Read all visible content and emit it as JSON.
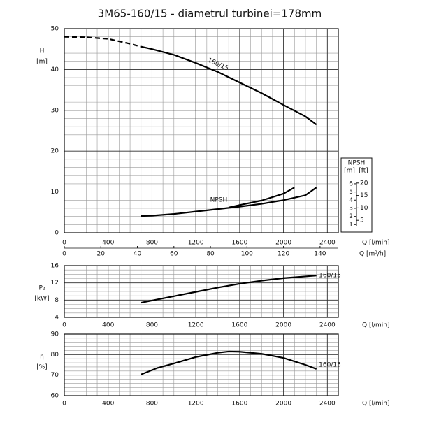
{
  "title": "3M65-160/15 - diametrul turbinei=178mm",
  "chart_data": [
    {
      "type": "line",
      "ylabel": "H",
      "yunit": "[m]",
      "xlabel": "Q [l/min]",
      "xlim": [
        0,
        2500
      ],
      "xticks": [
        0,
        400,
        800,
        1200,
        1600,
        2000,
        2400
      ],
      "x2label": "Q [m³/h]",
      "x2lim": [
        0,
        150
      ],
      "x2ticks": [
        0,
        20,
        40,
        60,
        80,
        100,
        120,
        140
      ],
      "ylim": [
        0,
        50
      ],
      "yticks": [
        0,
        10,
        20,
        30,
        40,
        50
      ],
      "y2lim": [
        0,
        25
      ],
      "grid": true,
      "npsh_scale": {
        "title": "NPSH",
        "unit_m": "[m]",
        "unit_ft": "[ft]",
        "m_ticks": [
          1,
          2,
          3,
          4,
          5,
          6
        ],
        "ft_ticks": [
          5,
          10,
          15,
          20
        ]
      },
      "curve_labels": [
        "160/15",
        "NPSH"
      ],
      "series": [
        {
          "color": "#000000",
          "linestyle": "dashed",
          "x": [
            0,
            200,
            400,
            600,
            700
          ],
          "values": [
            48,
            47.9,
            47.5,
            46.3,
            45.6
          ]
        },
        {
          "color": "#000000",
          "linestyle": "solid",
          "x": [
            700,
            800,
            1000,
            1200,
            1400,
            1600,
            1800,
            2000,
            2200,
            2300
          ],
          "values": [
            45.6,
            45,
            43.6,
            41.6,
            39.4,
            36.8,
            34.2,
            31.3,
            28.5,
            26.5
          ]
        },
        {
          "color": "#000000",
          "linestyle": "solid",
          "axis": "y2",
          "x": [
            700,
            800,
            1000,
            1200,
            1400,
            1600,
            1800,
            2000,
            2200,
            2300
          ],
          "values": [
            2.05,
            2.1,
            2.3,
            2.6,
            2.9,
            3.2,
            3.55,
            4.0,
            4.6,
            5.55
          ]
        },
        {
          "color": "#000000",
          "linestyle": "solid",
          "axis": "y2",
          "x": [
            1500,
            1600,
            1800,
            2000,
            2100
          ],
          "values": [
            3.1,
            3.4,
            3.95,
            4.8,
            5.55
          ]
        }
      ]
    },
    {
      "type": "line",
      "ylabel": "P₂",
      "yunit": "[kW]",
      "xlabel": "Q [l/min]",
      "xlim": [
        0,
        2500
      ],
      "xticks": [
        0,
        400,
        800,
        1200,
        1600,
        2000,
        2400
      ],
      "ylim": [
        4,
        16
      ],
      "yticks": [
        4,
        8,
        12,
        16
      ],
      "grid": true,
      "curve_labels": [
        "160/15"
      ],
      "series": [
        {
          "color": "#000000",
          "linestyle": "solid",
          "x": [
            700,
            800,
            1000,
            1200,
            1400,
            1600,
            1800,
            2000,
            2200,
            2300
          ],
          "values": [
            7.4,
            7.9,
            8.9,
            9.9,
            10.9,
            11.8,
            12.5,
            13.1,
            13.5,
            13.7
          ]
        }
      ]
    },
    {
      "type": "line",
      "ylabel": "η",
      "yunit": "[%]",
      "xlabel": "Q [l/min]",
      "xlim": [
        0,
        2500
      ],
      "xticks": [
        0,
        400,
        800,
        1200,
        1600,
        2000,
        2400
      ],
      "ylim": [
        60,
        90
      ],
      "yticks": [
        60,
        70,
        80,
        90
      ],
      "grid": true,
      "curve_labels": [
        "160/15"
      ],
      "series": [
        {
          "color": "#000000",
          "linestyle": "solid",
          "x": [
            700,
            850,
            1000,
            1200,
            1400,
            1500,
            1600,
            1800,
            2000,
            2200,
            2300
          ],
          "values": [
            70.3,
            73.5,
            75.7,
            78.8,
            80.9,
            81.5,
            81.4,
            80.4,
            78.4,
            75,
            73
          ]
        }
      ]
    }
  ]
}
